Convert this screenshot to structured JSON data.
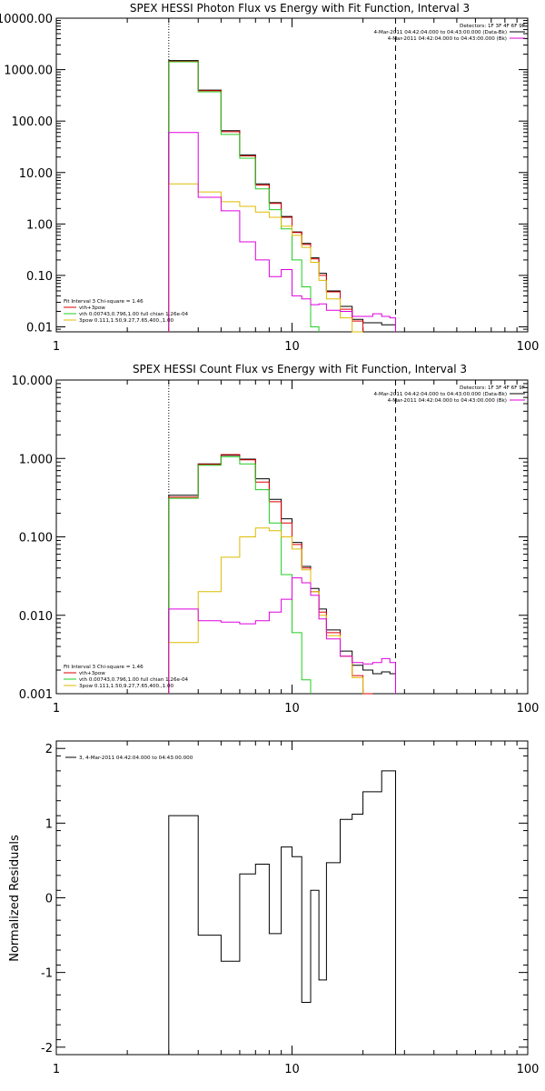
{
  "chart_data": [
    {
      "type": "line",
      "title": "SPEX HESSI Photon Flux vs Energy with Fit Function, Interval 3",
      "xscale": "log",
      "yscale": "log",
      "xlim": [
        1,
        100
      ],
      "ylim": [
        0.008,
        10000
      ],
      "x_tick_values": [
        1,
        10,
        100
      ],
      "x_ticks": [
        "1",
        "10",
        "100"
      ],
      "y_tick_values": [
        0.01,
        0.1,
        1,
        10,
        100,
        1000,
        10000
      ],
      "y_ticks": [
        "0.01",
        "0.10",
        "1.00",
        "10.00",
        "100.00",
        "1000.00",
        "10000.00"
      ],
      "vlines": [
        {
          "x": 3,
          "style": "dotted"
        },
        {
          "x": 27.5,
          "style": "dashed"
        }
      ],
      "bin_edges": [
        3,
        4,
        5,
        6,
        7,
        8,
        9,
        10,
        11,
        12,
        13,
        14,
        16,
        18,
        20,
        22,
        24,
        26,
        27.5
      ],
      "series": [
        {
          "name": "",
          "color": "#000000",
          "values": [
            1500,
            400,
            65,
            22,
            6,
            2.6,
            1.4,
            0.7,
            0.42,
            0.22,
            0.11,
            0.05,
            0.025,
            0.014,
            0.012,
            0.012,
            0.011,
            0.011
          ]
        },
        {
          "name": "",
          "color": "#dd0000",
          "values": [
            1450,
            390,
            62,
            21,
            5.7,
            2.5,
            1.35,
            0.68,
            0.4,
            0.21,
            0.1,
            0.048,
            0.022,
            0.013,
            null,
            null,
            null,
            null
          ]
        },
        {
          "name": "vth",
          "color": "#22cc22",
          "values": [
            1420,
            370,
            55,
            19,
            4.8,
            1.9,
            0.8,
            0.2,
            0.06,
            0.01,
            null,
            null,
            null,
            null,
            null,
            null,
            null,
            null
          ]
        },
        {
          "name": "3pow",
          "color": "#ddbb00",
          "values": [
            6,
            4.2,
            2.7,
            2.2,
            1.7,
            1.35,
            0.9,
            0.6,
            0.35,
            0.18,
            0.08,
            0.035,
            0.015,
            0.008,
            null,
            null,
            null,
            null
          ]
        },
        {
          "name": "",
          "color": "#dd00dd",
          "values": [
            60,
            3.3,
            1.8,
            0.45,
            0.2,
            0.095,
            0.13,
            0.04,
            0.035,
            0.027,
            0.028,
            0.021,
            0.02,
            0.016,
            0.016,
            0.018,
            0.016,
            0.015
          ]
        }
      ],
      "info": {
        "detectors": "Detectors: 1F 3F 4F 6F 9F",
        "time_range": "4-Mar-2011 04:42:04.000 to 04:43:00.000 (Data-Bk)",
        "bk_range": "4-Mar-2011 04:42:04.000 to 04:43:00.000 (Bk)"
      },
      "fit_legend": {
        "header": "Fit Interval 3   Chi-square = 1.46",
        "lines": [
          "vth+3pow",
          "vth 0.00743,0.796,1.00  full chian 1.26e-04",
          "3pow 0.111,1.50,9.27,7.65,400.,1.00"
        ]
      }
    },
    {
      "type": "line",
      "title": "SPEX HESSI Count Flux vs Energy with Fit Function, Interval 3",
      "xscale": "log",
      "yscale": "log",
      "xlim": [
        1,
        100
      ],
      "ylim": [
        0.001,
        10
      ],
      "x_tick_values": [
        1,
        10,
        100
      ],
      "x_ticks": [
        "1",
        "10",
        "100"
      ],
      "y_tick_values": [
        0.001,
        0.01,
        0.1,
        1,
        10
      ],
      "y_ticks": [
        "0.001",
        "0.010",
        "0.100",
        "1.000",
        "10.000"
      ],
      "vlines": [
        {
          "x": 3,
          "style": "dotted"
        },
        {
          "x": 27.5,
          "style": "dashed"
        }
      ],
      "bin_edges": [
        3,
        4,
        5,
        6,
        7,
        8,
        9,
        10,
        11,
        12,
        13,
        14,
        16,
        18,
        20,
        22,
        24,
        26,
        27.5
      ],
      "series": [
        {
          "name": "",
          "color": "#000000",
          "values": [
            0.34,
            0.85,
            1.1,
            0.98,
            0.55,
            0.3,
            0.17,
            0.085,
            0.042,
            0.022,
            0.012,
            0.0065,
            0.0035,
            0.0023,
            0.002,
            0.0018,
            0.0019,
            0.0018
          ]
        },
        {
          "name": "",
          "color": "#dd0000",
          "values": [
            0.32,
            0.84,
            1.12,
            0.96,
            0.5,
            0.28,
            0.15,
            0.08,
            0.04,
            0.02,
            0.011,
            0.006,
            0.003,
            0.0017,
            0.001,
            null,
            null,
            null
          ]
        },
        {
          "name": "vth",
          "color": "#22cc22",
          "values": [
            0.31,
            0.82,
            1.05,
            0.85,
            0.4,
            0.15,
            0.033,
            0.006,
            0.0015,
            null,
            null,
            null,
            null,
            null,
            null,
            null,
            null,
            null
          ]
        },
        {
          "name": "3pow",
          "color": "#ddbb00",
          "values": [
            0.0045,
            0.02,
            0.055,
            0.1,
            0.13,
            0.12,
            0.1,
            0.07,
            0.038,
            0.02,
            0.01,
            0.0055,
            0.003,
            0.0016,
            null,
            null,
            null,
            null
          ]
        },
        {
          "name": "",
          "color": "#dd00dd",
          "values": [
            0.012,
            0.0085,
            0.0082,
            0.0078,
            0.0085,
            0.011,
            0.016,
            0.03,
            0.026,
            0.018,
            0.009,
            0.005,
            0.003,
            0.0025,
            0.0024,
            0.0025,
            0.0028,
            0.0025
          ]
        }
      ],
      "info": {
        "detectors": "Detectors: 1F 3F 4F 6F 9F",
        "time_range": "4-Mar-2011 04:42:04.000 to 04:43:00.000 (Data-Bk)",
        "bk_range": "4-Mar-2011 04:42:04.000 to 04:43:00.000 (Bk)"
      },
      "fit_legend": {
        "header": "Fit Interval 3   Chi-square = 1.46",
        "lines": [
          "vth+3pow",
          "vth 0.00743,0.796,1.00  full chian 1.26e-04",
          "3pow 0.111,1.50,9.27,7.65,400.,1.00"
        ]
      }
    },
    {
      "type": "line",
      "title": "",
      "ylabel": "Normalized Residuals",
      "xscale": "log",
      "yscale": "linear",
      "xlim": [
        1,
        100
      ],
      "ylim": [
        -2.1,
        2.1
      ],
      "x_tick_values": [
        1,
        10,
        100
      ],
      "x_ticks": [
        "1",
        "10",
        "100"
      ],
      "y_tick_values": [
        -2,
        -1,
        0,
        1,
        2
      ],
      "y_ticks": [
        "-2",
        "-1",
        "0",
        "1",
        "2"
      ],
      "legend_label": "3,  4-Mar-2011 04:42:04.000 to 04:43:00.000",
      "bin_edges": [
        3,
        4,
        5,
        6,
        7,
        8,
        9,
        10,
        11,
        12,
        13,
        14,
        16,
        18,
        20,
        22,
        24,
        26,
        27.5
      ],
      "series": [
        {
          "name": "",
          "color": "#000000",
          "values": [
            1.1,
            -0.5,
            -0.85,
            0.32,
            0.45,
            -0.48,
            0.68,
            0.55,
            -1.4,
            0.1,
            -1.1,
            0.47,
            1.05,
            1.12,
            1.42,
            1.42,
            1.7,
            1.7
          ]
        }
      ]
    }
  ]
}
